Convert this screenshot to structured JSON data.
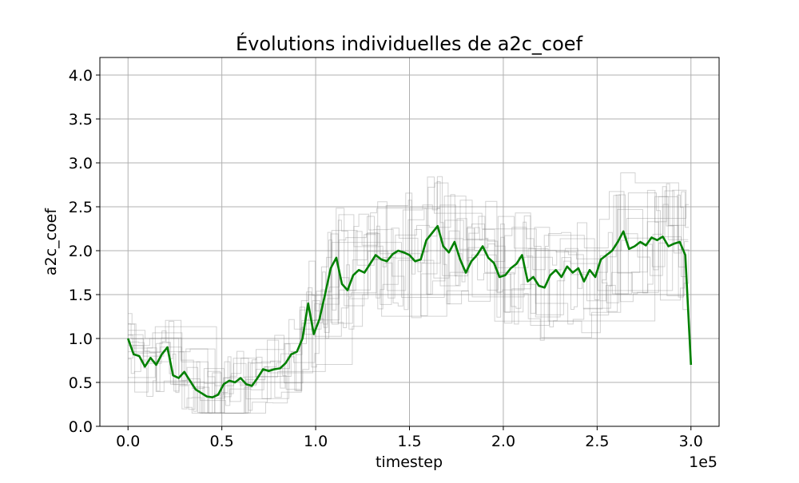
{
  "chart_data": {
    "type": "line",
    "title": "Évolutions individuelles de a2c_coef",
    "xlabel": "timestep",
    "ylabel": "a2c_coef",
    "x_scale_label": "1e5",
    "x_scale_factor": 100000,
    "xlim": [
      -15000,
      315000
    ],
    "ylim": [
      0.0,
      4.2
    ],
    "x_ticks": [
      0.0,
      0.5,
      1.0,
      1.5,
      2.0,
      2.5,
      3.0
    ],
    "x_tick_labels": [
      "0.0",
      "0.5",
      "1.0",
      "1.5",
      "2.0",
      "2.5",
      "3.0"
    ],
    "y_ticks": [
      0.0,
      0.5,
      1.0,
      1.5,
      2.0,
      2.5,
      3.0,
      3.5,
      4.0
    ],
    "y_tick_labels": [
      "0.0",
      "0.5",
      "1.0",
      "1.5",
      "2.0",
      "2.5",
      "3.0",
      "3.5",
      "4.0"
    ],
    "grid": true,
    "colors": {
      "mean": "#008000",
      "individual": "#808080",
      "grid": "#b0b0b0"
    },
    "mean_series": {
      "x": [
        0,
        3000,
        6000,
        9000,
        12000,
        15000,
        18000,
        21000,
        24000,
        27000,
        30000,
        33000,
        36000,
        39000,
        42000,
        45000,
        48000,
        51000,
        54000,
        57000,
        60000,
        63000,
        66000,
        69000,
        72000,
        75000,
        78000,
        81000,
        84000,
        87000,
        90000,
        93000,
        96000,
        99000,
        102000,
        105000,
        108000,
        111000,
        114000,
        117000,
        120000,
        123000,
        126000,
        129000,
        132000,
        135000,
        138000,
        141000,
        144000,
        147000,
        150000,
        153000,
        156000,
        159000,
        162000,
        165000,
        168000,
        171000,
        174000,
        177000,
        180000,
        183000,
        186000,
        189000,
        192000,
        195000,
        198000,
        201000,
        204000,
        207000,
        210000,
        213000,
        216000,
        219000,
        222000,
        225000,
        228000,
        231000,
        234000,
        237000,
        240000,
        243000,
        246000,
        249000,
        252000,
        255000,
        258000,
        261000,
        264000,
        267000,
        270000,
        273000,
        276000,
        279000,
        282000,
        285000,
        288000,
        291000,
        294000,
        297000,
        300000
      ],
      "y": [
        1.0,
        0.82,
        0.8,
        0.68,
        0.78,
        0.7,
        0.82,
        0.9,
        0.58,
        0.55,
        0.62,
        0.52,
        0.42,
        0.38,
        0.34,
        0.33,
        0.36,
        0.48,
        0.52,
        0.5,
        0.55,
        0.48,
        0.46,
        0.55,
        0.65,
        0.63,
        0.65,
        0.66,
        0.72,
        0.82,
        0.85,
        1.0,
        1.4,
        1.05,
        1.22,
        1.5,
        1.8,
        1.92,
        1.62,
        1.55,
        1.72,
        1.78,
        1.75,
        1.85,
        1.95,
        1.9,
        1.88,
        1.96,
        2.0,
        1.98,
        1.95,
        1.88,
        1.9,
        2.12,
        2.2,
        2.28,
        2.05,
        1.98,
        2.1,
        1.9,
        1.75,
        1.88,
        1.95,
        2.05,
        1.92,
        1.86,
        1.7,
        1.72,
        1.8,
        1.85,
        1.95,
        1.65,
        1.7,
        1.6,
        1.58,
        1.72,
        1.78,
        1.7,
        1.82,
        1.75,
        1.8,
        1.65,
        1.78,
        1.7,
        1.9,
        1.95,
        2.0,
        2.1,
        2.22,
        2.02,
        2.05,
        2.1,
        2.06,
        2.15,
        2.12,
        2.16,
        2.05,
        2.08,
        2.1,
        1.95,
        0.7
      ],
      "name": ""
    },
    "individual_series_count": 12
  }
}
